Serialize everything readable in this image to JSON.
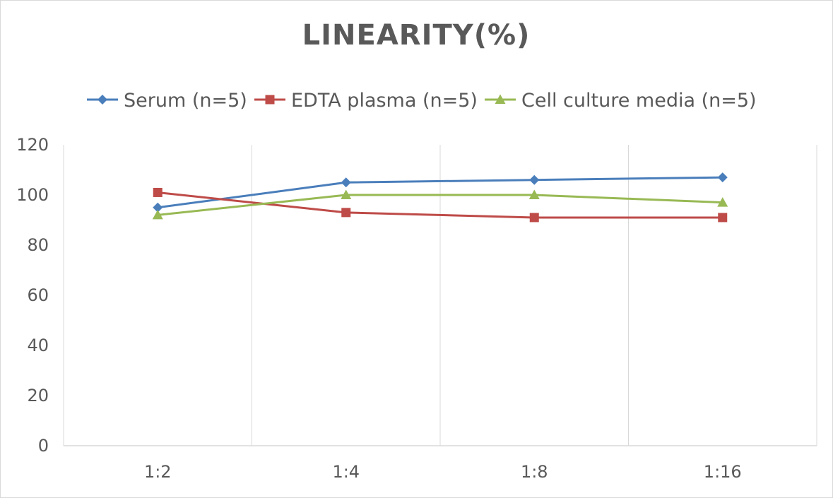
{
  "chart_data": {
    "type": "line",
    "title": "LINEARITY(%)",
    "xlabel": "",
    "ylabel": "",
    "categories": [
      "1:2",
      "1:4",
      "1:8",
      "1:16"
    ],
    "ylim": [
      0,
      120
    ],
    "yticks": [
      0,
      20,
      40,
      60,
      80,
      100,
      120
    ],
    "grid": "vertical",
    "legend_position": "top",
    "series": [
      {
        "name": "Serum (n=5)",
        "values": [
          95,
          105,
          106,
          107
        ],
        "color": "#4a7ebb",
        "marker": "diamond"
      },
      {
        "name": "EDTA plasma (n=5)",
        "values": [
          101,
          93,
          91,
          91
        ],
        "color": "#be4b48",
        "marker": "square"
      },
      {
        "name": "Cell culture media (n=5)",
        "values": [
          92,
          100,
          100,
          97
        ],
        "color": "#98b954",
        "marker": "triangle"
      }
    ]
  }
}
